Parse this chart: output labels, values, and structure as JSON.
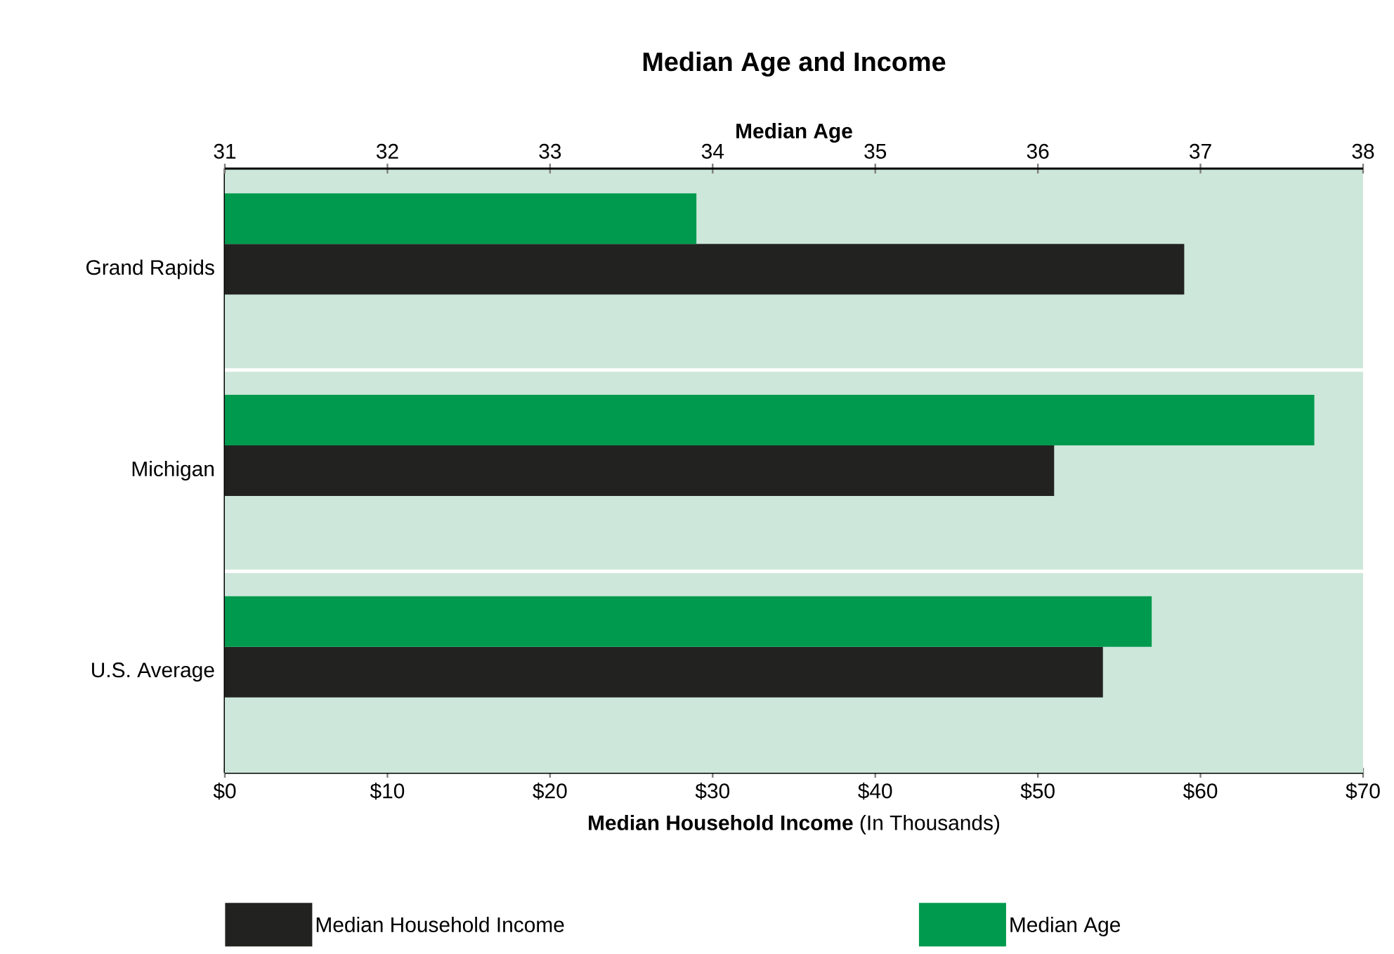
{
  "chart_data": {
    "type": "bar",
    "orientation": "horizontal",
    "title": "Median Age and Income",
    "xlabel": "**Median Household Income** (In Thousands)",
    "x2label": "Median Age",
    "categories": [
      "Grand Rapids",
      "Michigan",
      "U.S. Average"
    ],
    "series": [
      {
        "name": "Median Household Income",
        "color": "#222320",
        "values": [
          59,
          51,
          54
        ]
      },
      {
        "name": "Median Age",
        "color": "#009a4e",
        "values": [
          33.9,
          37.7,
          36.7
        ],
        "axis": "x2"
      }
    ],
    "xlim": [
      0,
      70
    ],
    "xticks": [
      {
        "value": 0,
        "label": "$0"
      },
      {
        "value": 10,
        "label": "$10"
      },
      {
        "value": 20,
        "label": "$20"
      },
      {
        "value": 30,
        "label": "$30"
      },
      {
        "value": 40,
        "label": "$40"
      },
      {
        "value": 50,
        "label": "$50"
      },
      {
        "value": 60,
        "label": "$60"
      },
      {
        "value": 70,
        "label": "$70"
      }
    ],
    "x2lim": [
      31,
      38
    ],
    "x2ticks": [
      31,
      32,
      33,
      34,
      35,
      36,
      37,
      38
    ],
    "legend": "bottom"
  }
}
